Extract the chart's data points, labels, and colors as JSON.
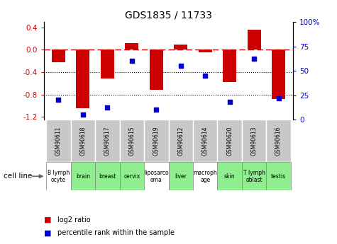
{
  "title": "GDS1835 / 11733",
  "samples": [
    "GSM90611",
    "GSM90618",
    "GSM90617",
    "GSM90615",
    "GSM90619",
    "GSM90612",
    "GSM90614",
    "GSM90620",
    "GSM90613",
    "GSM90616"
  ],
  "cell_lines": [
    "B lymph\nocyte",
    "brain",
    "breast",
    "cervix",
    "liposarco\noma",
    "liver",
    "macroph\nage",
    "skin",
    "T lymph\noblast",
    "testis"
  ],
  "cell_line_colors": [
    "#ffffff",
    "#90ee90",
    "#90ee90",
    "#90ee90",
    "#ffffff",
    "#90ee90",
    "#ffffff",
    "#90ee90",
    "#90ee90",
    "#90ee90"
  ],
  "log2_ratio": [
    -0.22,
    -1.05,
    -0.52,
    0.12,
    -0.72,
    0.09,
    -0.05,
    -0.58,
    0.36,
    -0.88
  ],
  "percentile_rank": [
    20,
    5,
    12,
    60,
    10,
    55,
    45,
    18,
    62,
    22
  ],
  "bar_color": "#cc0000",
  "dot_color": "#0000cc",
  "dashed_line_color": "#cc0000",
  "dotted_line_color": "#000000",
  "ylim_left": [
    -1.25,
    0.5
  ],
  "ylim_right": [
    0,
    100
  ],
  "yticks_left": [
    0.4,
    0.0,
    -0.4,
    -0.8,
    -1.2
  ],
  "yticks_right": [
    100,
    75,
    50,
    25,
    0
  ],
  "background_color": "#ffffff",
  "plot_bg_color": "#ffffff",
  "gsm_row_color": "#c8c8c8",
  "bar_width": 0.55
}
